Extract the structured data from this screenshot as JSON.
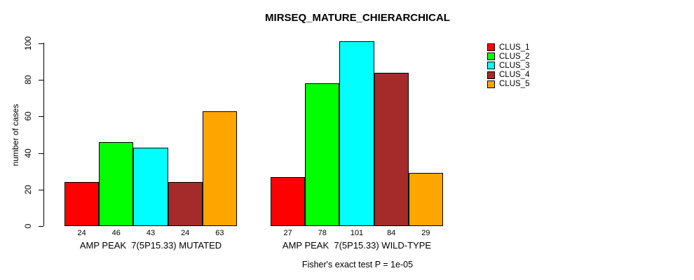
{
  "title": "MIRSEQ_MATURE_CHIERARCHICAL",
  "subtitle": "Fisher's exact test P = 1e-05",
  "y_axis": {
    "label": "number of cases",
    "ticks": [
      "0",
      "20",
      "40",
      "60",
      "80",
      "100"
    ]
  },
  "legend": {
    "items": [
      {
        "label": "CLUS_1",
        "color": "#FF0000"
      },
      {
        "label": "CLUS_2",
        "color": "#00FF00"
      },
      {
        "label": "CLUS_3",
        "color": "#00FFFF"
      },
      {
        "label": "CLUS_4",
        "color": "#A52A2A"
      },
      {
        "label": "CLUS_5",
        "color": "#FFA500"
      }
    ]
  },
  "chart_data": {
    "type": "bar",
    "title": "MIRSEQ_MATURE_CHIERARCHICAL",
    "ylabel": "number of cases",
    "ylim": [
      0,
      100
    ],
    "yticks": [
      0,
      20,
      40,
      60,
      80,
      100
    ],
    "grid": false,
    "legend_position": "right",
    "series": [
      "CLUS_1",
      "CLUS_2",
      "CLUS_3",
      "CLUS_4",
      "CLUS_5"
    ],
    "colors": [
      "#FF0000",
      "#00FF00",
      "#00FFFF",
      "#A52A2A",
      "#FFA500"
    ],
    "groups": [
      {
        "label": "AMP PEAK  7(5P15.33) MUTATED",
        "values": [
          24,
          46,
          43,
          24,
          63
        ]
      },
      {
        "label": "AMP PEAK  7(5P15.33) WILD-TYPE",
        "values": [
          27,
          78,
          101,
          84,
          29
        ]
      }
    ],
    "annotation": "Fisher's exact test P = 1e-05"
  }
}
